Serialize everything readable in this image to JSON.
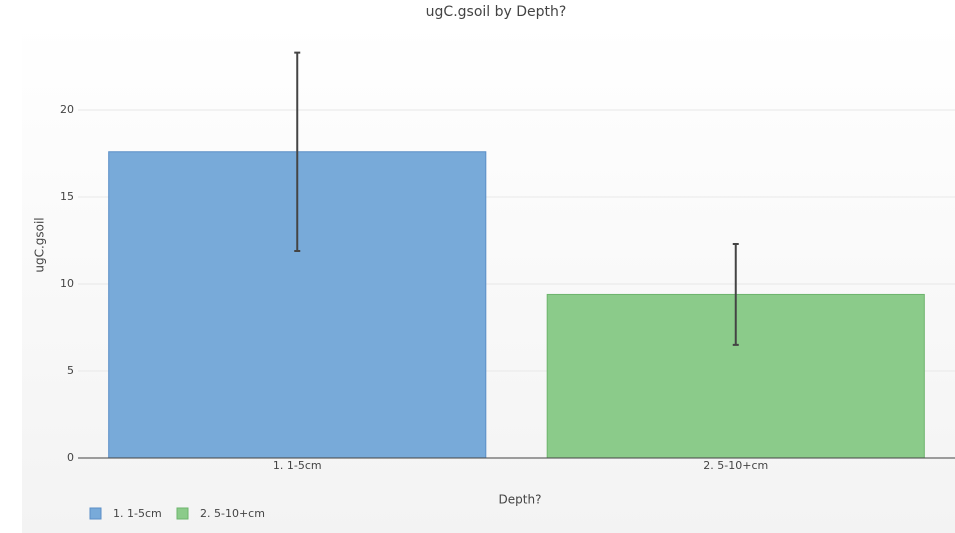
{
  "chart_data": {
    "type": "bar",
    "title": "ugC.gsoil by Depth?",
    "x_label": "Depth?",
    "y_label": "ugC.gsoil",
    "categories": [
      "1. 1-5cm",
      "2. 5-10+cm"
    ],
    "values": [
      17.6,
      9.4
    ],
    "errors": [
      5.7,
      2.9
    ],
    "colors": [
      "#78aad9",
      "#8bcb8a"
    ],
    "stroke_colors": [
      "#5b8fc7",
      "#6db46c"
    ],
    "ylim": [
      0,
      25
    ],
    "yticks": [
      0,
      5,
      10,
      15,
      20
    ],
    "grid": true,
    "legend": "bottom-left"
  }
}
